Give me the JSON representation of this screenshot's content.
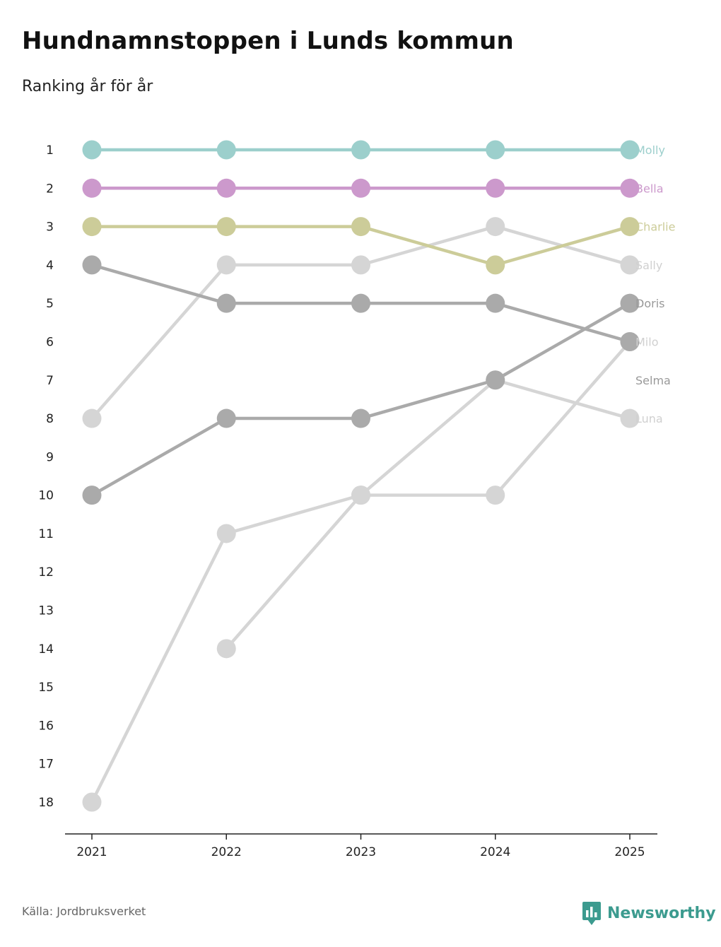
{
  "title": "Hundnamnstoppen i Lunds kommun",
  "subtitle": "Ranking år för år",
  "source": "Källa: Jordbruksverket",
  "brand": {
    "name": "Newsworthy",
    "icon": "newsworthy-logo-icon",
    "color": "#3c9b8f"
  },
  "chart_data": {
    "type": "line",
    "title": "Hundnamnstoppen i Lunds kommun",
    "subtitle": "Ranking år för år",
    "xlabel": "",
    "ylabel": "",
    "x": [
      "2021",
      "2022",
      "2023",
      "2024",
      "2025"
    ],
    "y_ticks": [
      "1",
      "2",
      "3",
      "4",
      "5",
      "6",
      "7",
      "8",
      "9",
      "10",
      "11",
      "12",
      "13",
      "14",
      "15",
      "16",
      "17",
      "18"
    ],
    "ylim": [
      1,
      18
    ],
    "y_inverted": true,
    "grid": false,
    "series": [
      {
        "name": "Molly",
        "color": "#9ccfcc",
        "values": [
          1,
          1,
          1,
          1,
          1
        ]
      },
      {
        "name": "Bella",
        "color": "#cc99cc",
        "values": [
          2,
          2,
          2,
          2,
          2
        ]
      },
      {
        "name": "Charlie",
        "color": "#cccc99",
        "values": [
          3,
          3,
          3,
          4,
          3
        ]
      },
      {
        "name": "Sally",
        "color": "#d5d5d5",
        "values": [
          8,
          4,
          4,
          3,
          4
        ]
      },
      {
        "name": "Doris",
        "color": "#aaaaaa",
        "values": [
          10,
          8,
          8,
          7,
          5
        ]
      },
      {
        "name": "Milo",
        "color": "#aaaaaa",
        "values": [
          4,
          5,
          5,
          5,
          6
        ]
      },
      {
        "name": "Selma",
        "color": "#d5d5d5",
        "values": [
          null,
          14,
          10,
          10,
          6
        ]
      },
      {
        "name": "Luna",
        "color": "#d5d5d5",
        "values": [
          18,
          11,
          10,
          7,
          8
        ]
      }
    ],
    "end_labels": [
      {
        "text": "Molly",
        "rank": 1,
        "color": "#9ccfcc"
      },
      {
        "text": "Bella",
        "rank": 2,
        "color": "#cc99cc"
      },
      {
        "text": "Charlie",
        "rank": 3,
        "color": "#cccc99"
      },
      {
        "text": "Sally",
        "rank": 4,
        "color": "#d0d0d0"
      },
      {
        "text": "Doris",
        "rank": 5,
        "color": "#999999"
      },
      {
        "text": "Milo",
        "rank": 6,
        "color": "#d0d0d0"
      },
      {
        "text": "Selma",
        "rank": 7,
        "color": "#999999"
      },
      {
        "text": "Luna",
        "rank": 8,
        "color": "#d0d0d0"
      }
    ]
  }
}
